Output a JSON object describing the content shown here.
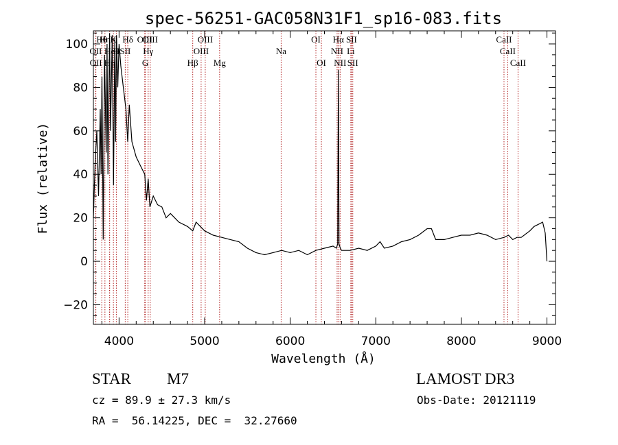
{
  "chart_data": {
    "type": "line",
    "title": "spec-56251-GAC058N31F1_sp16-083.fits",
    "xlabel": "Wavelength (Å)",
    "ylabel": "Flux (relative)",
    "xlim": [
      3700,
      9100
    ],
    "ylim": [
      -29,
      106
    ],
    "x_ticks": [
      4000,
      5000,
      6000,
      7000,
      8000,
      9000
    ],
    "x_tick_labels": [
      "4000",
      "5000",
      "6000",
      "7000",
      "8000",
      "9000"
    ],
    "y_ticks": [
      -20,
      0,
      20,
      40,
      60,
      80,
      100
    ],
    "y_tick_labels": [
      "−20",
      "0",
      "20",
      "40",
      "60",
      "80",
      "100"
    ],
    "line_color": "#000000",
    "marker_color": "#b22222",
    "series": [
      {
        "name": "spectrum",
        "x": [
          3700,
          3720,
          3740,
          3760,
          3780,
          3790,
          3800,
          3815,
          3830,
          3850,
          3860,
          3870,
          3889,
          3900,
          3920,
          3935,
          3950,
          3960,
          3970,
          3985,
          4000,
          4020,
          4050,
          4080,
          4101,
          4120,
          4150,
          4200,
          4250,
          4300,
          4320,
          4340,
          4360,
          4400,
          4450,
          4500,
          4550,
          4600,
          4700,
          4800,
          4861,
          4900,
          5000,
          5100,
          5200,
          5300,
          5400,
          5500,
          5600,
          5700,
          5800,
          5900,
          6000,
          6100,
          6200,
          6300,
          6400,
          6500,
          6540,
          6555,
          6563,
          6570,
          6585,
          6600,
          6700,
          6800,
          6900,
          7000,
          7050,
          7100,
          7200,
          7300,
          7400,
          7500,
          7600,
          7650,
          7700,
          7800,
          7900,
          8000,
          8100,
          8200,
          8300,
          8400,
          8500,
          8550,
          8600,
          8650,
          8700,
          8800,
          8850,
          8900,
          8950,
          8980,
          9000
        ],
        "y": [
          20,
          45,
          60,
          30,
          70,
          40,
          85,
          10,
          95,
          50,
          100,
          40,
          105,
          60,
          104,
          35,
          103,
          55,
          104,
          80,
          100,
          90,
          80,
          70,
          55,
          72,
          55,
          48,
          44,
          40,
          28,
          38,
          25,
          30,
          26,
          25,
          20,
          22,
          18,
          16,
          14,
          18,
          14,
          12,
          11,
          10,
          9,
          6,
          4,
          3,
          4,
          5,
          4,
          5,
          3,
          5,
          6,
          7,
          6,
          8,
          88,
          8,
          6,
          5,
          5,
          6,
          5,
          7,
          9,
          6,
          7,
          9,
          10,
          12,
          15,
          15,
          10,
          10,
          11,
          12,
          12,
          13,
          12,
          10,
          11,
          12,
          10,
          11,
          11,
          14,
          16,
          17,
          18,
          13,
          0
        ]
      }
    ],
    "line_markers": [
      {
        "label": "Hθ",
        "x": 3798,
        "row": 1
      },
      {
        "label": "OII",
        "x": 3727,
        "row": 2
      },
      {
        "label": "OII",
        "x": 3729,
        "row": 3
      },
      {
        "label": "Hη",
        "x": 3835,
        "row": 1
      },
      {
        "label": "He",
        "x": 3889,
        "row": 2
      },
      {
        "label": "Hη",
        "x": 3890,
        "row": 3
      },
      {
        "label": "K",
        "x": 3934,
        "row": 1
      },
      {
        "label": "H",
        "x": 3968,
        "row": 2
      },
      {
        "label": "SII",
        "x": 4072,
        "row": 2
      },
      {
        "label": "Hδ",
        "x": 4102,
        "row": 1
      },
      {
        "label": "OIII",
        "x": 4300,
        "row": 1
      },
      {
        "label": "Hγ",
        "x": 4340,
        "row": 2
      },
      {
        "label": "G",
        "x": 4306,
        "row": 3
      },
      {
        "label": "OIII",
        "x": 4364,
        "row": 1
      },
      {
        "label": "Hβ",
        "x": 4861,
        "row": 3
      },
      {
        "label": "OIII",
        "x": 4959,
        "row": 2
      },
      {
        "label": "OIII",
        "x": 5007,
        "row": 1
      },
      {
        "label": "Mg",
        "x": 5175,
        "row": 3
      },
      {
        "label": "Na",
        "x": 5894,
        "row": 2
      },
      {
        "label": "OI",
        "x": 6300,
        "row": 1
      },
      {
        "label": "OI",
        "x": 6364,
        "row": 3
      },
      {
        "label": "Hα",
        "x": 6563,
        "row": 1
      },
      {
        "label": "NII",
        "x": 6548,
        "row": 2
      },
      {
        "label": "NII",
        "x": 6583,
        "row": 3
      },
      {
        "label": "SII",
        "x": 6716,
        "row": 1
      },
      {
        "label": "Li",
        "x": 6708,
        "row": 2
      },
      {
        "label": "SII",
        "x": 6731,
        "row": 3
      },
      {
        "label": "CaII",
        "x": 8498,
        "row": 1
      },
      {
        "label": "CaII",
        "x": 8542,
        "row": 2
      },
      {
        "label": "CaII",
        "x": 8662,
        "row": 3
      }
    ]
  },
  "info": {
    "class_label": "STAR",
    "subclass": "M7",
    "survey": "LAMOST DR3",
    "redshift": "cz = 89.9 ± 27.3 km/s",
    "obs_date": "Obs-Date: 20121119",
    "coords": "RA =  56.14225, DEC =  32.27660"
  }
}
